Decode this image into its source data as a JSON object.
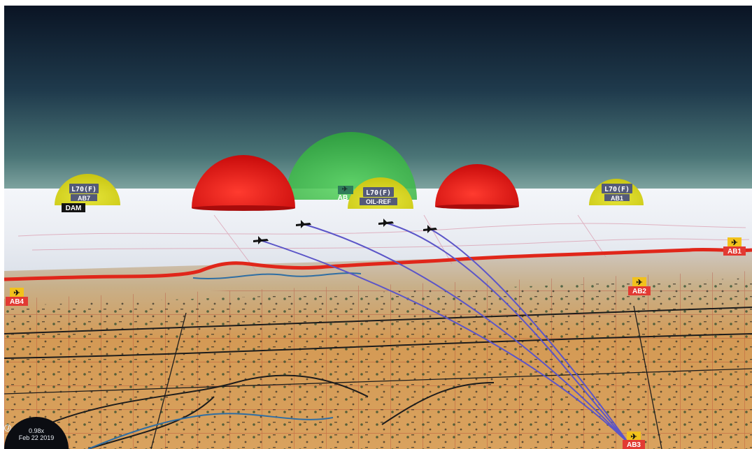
{
  "hud": {
    "playback_speed": "0.98x",
    "date": "Feb 22 2019",
    "clock_icon": "clock-icon"
  },
  "domes": [
    {
      "name": "dome-l70-ab7",
      "color": "#d4d21a",
      "code": "L70(F)",
      "site": "AB7",
      "tag": "DAM"
    },
    {
      "name": "dome-red-1",
      "color": "#e01414",
      "code": "",
      "site": "",
      "tag": ""
    },
    {
      "name": "dome-green",
      "color": "#3ec24a",
      "code": "",
      "site": "AB",
      "tag": ""
    },
    {
      "name": "dome-l70-oil-ref",
      "color": "#d4d21a",
      "code": "L70(F)",
      "site": "OIL-REF",
      "tag": ""
    },
    {
      "name": "dome-red-2",
      "color": "#e01414",
      "code": "",
      "site": "",
      "tag": ""
    },
    {
      "name": "dome-l70-ab1",
      "color": "#d4d21a",
      "code": "L70(F)",
      "site": "AB1",
      "tag": ""
    }
  ],
  "airbases": [
    {
      "name": "airbase-ab1",
      "label": "AB1",
      "icon": "airplane-icon"
    },
    {
      "name": "airbase-ab2",
      "label": "AB2",
      "icon": "airplane-icon"
    },
    {
      "name": "airbase-ab4",
      "label": "AB4",
      "icon": "airplane-icon"
    },
    {
      "name": "airbase-ab3",
      "label": "AB3",
      "icon": "airplane-icon"
    }
  ],
  "aircraft": [
    {
      "name": "aircraft-1",
      "icon": "jet-aircraft-icon"
    },
    {
      "name": "aircraft-2",
      "icon": "jet-aircraft-icon"
    },
    {
      "name": "aircraft-3",
      "icon": "jet-aircraft-icon"
    },
    {
      "name": "aircraft-4",
      "icon": "jet-aircraft-icon"
    }
  ],
  "colors": {
    "sky_top": "#0c1a2c",
    "sky_horizon": "#6f9a9b",
    "haze": "#eef1f6",
    "terrain": "#d9a25e",
    "border_line": "#e0261a",
    "flight_path": "#5b55c8",
    "airbase_label_bg": "#e23a33",
    "airbase_icon_bg": "#f2c21c",
    "code_label_bg": "#545a78"
  }
}
